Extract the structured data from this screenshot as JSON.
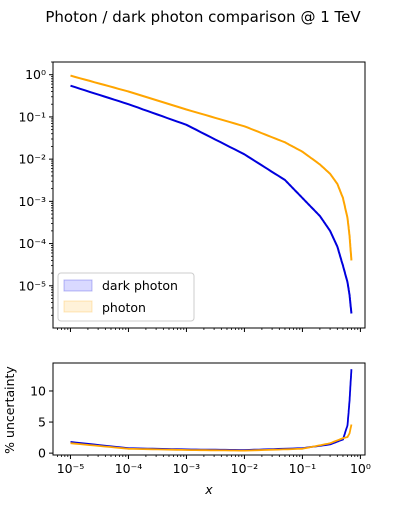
{
  "chart_data": [
    {
      "type": "line",
      "title": "Photon / dark photon comparison @ 1 TeV",
      "xscale": "log",
      "yscale": "log",
      "xlim": [
        5e-06,
        1.2
      ],
      "ylim": [
        1e-06,
        2
      ],
      "ytick_labels": [
        "10⁻⁵",
        "10⁻⁴",
        "10⁻³",
        "10⁻²",
        "10⁻¹",
        "10⁰"
      ],
      "legend": "lower-left",
      "legend_entries": [
        "dark photon",
        "photon"
      ],
      "series": [
        {
          "name": "dark photon",
          "color": "#0000dd",
          "x": [
            1e-05,
            0.0001,
            0.001,
            0.01,
            0.05,
            0.1,
            0.2,
            0.3,
            0.4,
            0.5,
            0.6,
            0.65,
            0.7
          ],
          "y": [
            0.55,
            0.2,
            0.065,
            0.013,
            0.0032,
            0.0012,
            0.00045,
            0.0002,
            8.5e-05,
            3e-05,
            1.2e-05,
            6e-06,
            2.2e-06
          ]
        },
        {
          "name": "photon",
          "color": "#ffa500",
          "x": [
            1e-05,
            0.0001,
            0.001,
            0.01,
            0.05,
            0.1,
            0.2,
            0.3,
            0.4,
            0.5,
            0.6,
            0.65,
            0.7
          ],
          "y": [
            0.95,
            0.4,
            0.15,
            0.06,
            0.025,
            0.015,
            0.0075,
            0.0045,
            0.0026,
            0.0012,
            0.0004,
            0.00015,
            4e-05
          ]
        }
      ]
    },
    {
      "type": "line",
      "xlabel": "x",
      "ylabel": "% uncertainty",
      "xscale": "log",
      "xlim": [
        5e-06,
        1.2
      ],
      "ylim": [
        -0.3,
        14.5
      ],
      "yticks": [
        0,
        5,
        10
      ],
      "xtick_labels": [
        "10⁻⁵",
        "10⁻⁴",
        "10⁻³",
        "10⁻²",
        "10⁻¹",
        "10⁰"
      ],
      "series": [
        {
          "name": "dark photon",
          "color": "#0000dd",
          "x": [
            1e-05,
            0.0001,
            0.001,
            0.01,
            0.1,
            0.3,
            0.5,
            0.6,
            0.65,
            0.7
          ],
          "y": [
            1.8,
            0.8,
            0.6,
            0.5,
            0.8,
            1.4,
            2.2,
            4.5,
            8.5,
            13.5
          ]
        },
        {
          "name": "photon",
          "color": "#ffa500",
          "x": [
            1e-05,
            0.0001,
            0.001,
            0.01,
            0.1,
            0.3,
            0.5,
            0.6,
            0.65,
            0.7
          ],
          "y": [
            1.6,
            0.7,
            0.5,
            0.4,
            0.7,
            1.6,
            2.4,
            2.6,
            3.2,
            4.6
          ]
        }
      ]
    }
  ]
}
